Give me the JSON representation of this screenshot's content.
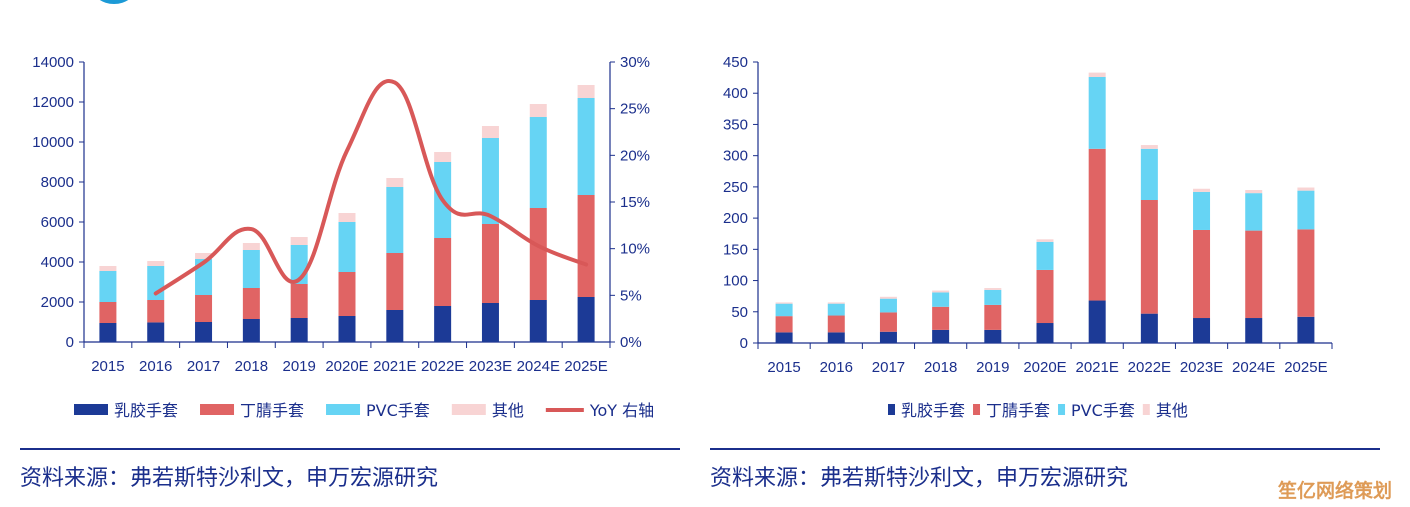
{
  "brand_colors": {
    "latex": "#1c3a96",
    "nitrile": "#e06464",
    "pvc": "#66d4f4",
    "other": "#f8d4d4",
    "yoy": "#d85858",
    "axis": "#1b2f8c"
  },
  "chart_data": [
    {
      "type": "bar",
      "stacked": true,
      "categories": [
        "2015",
        "2016",
        "2017",
        "2018",
        "2019",
        "2020E",
        "2021E",
        "2022E",
        "2023E",
        "2024E",
        "2025E"
      ],
      "series": [
        {
          "name": "乳胶手套",
          "values": [
            950,
            980,
            1000,
            1150,
            1200,
            1300,
            1600,
            1800,
            1950,
            2100,
            2250
          ]
        },
        {
          "name": "丁腈手套",
          "values": [
            1050,
            1120,
            1350,
            1550,
            1700,
            2200,
            2850,
            3400,
            3950,
            4600,
            5100
          ]
        },
        {
          "name": "PVC手套",
          "values": [
            1550,
            1700,
            1800,
            1900,
            1950,
            2500,
            3300,
            3800,
            4300,
            4550,
            4850
          ]
        },
        {
          "name": "其他",
          "values": [
            250,
            250,
            300,
            350,
            400,
            450,
            450,
            500,
            600,
            650,
            650
          ]
        }
      ],
      "line": {
        "name": "YoY 右轴",
        "x": [
          "2016",
          "2017",
          "2018",
          "2019",
          "2020E",
          "2021E",
          "2022E",
          "2023E",
          "2024E",
          "2025E"
        ],
        "values": [
          0.052,
          0.085,
          0.121,
          0.067,
          0.205,
          0.278,
          0.152,
          0.135,
          0.103,
          0.083
        ]
      },
      "ylim": [
        0,
        14000
      ],
      "y_ticks": [
        "0",
        "2000",
        "4000",
        "6000",
        "8000",
        "10000",
        "12000",
        "14000"
      ],
      "y2lim": [
        0,
        0.3
      ],
      "y2_ticks": [
        "0%",
        "5%",
        "10%",
        "15%",
        "20%",
        "25%",
        "30%"
      ],
      "legend": [
        "乳胶手套",
        "丁腈手套",
        "PVC手套",
        "其他",
        "YoY 右轴"
      ]
    },
    {
      "type": "bar",
      "stacked": true,
      "categories": [
        "2015",
        "2016",
        "2017",
        "2018",
        "2019",
        "2020E",
        "2021E",
        "2022E",
        "2023E",
        "2024E",
        "2025E"
      ],
      "series": [
        {
          "name": "乳胶手套",
          "values": [
            17,
            17,
            18,
            21,
            21,
            32,
            68,
            47,
            40,
            40,
            42
          ]
        },
        {
          "name": "丁腈手套",
          "values": [
            26,
            27,
            31,
            37,
            40,
            85,
            243,
            182,
            141,
            140,
            140
          ]
        },
        {
          "name": "PVC手套",
          "values": [
            20,
            19,
            22,
            23,
            24,
            45,
            115,
            82,
            61,
            60,
            62
          ]
        },
        {
          "name": "其他",
          "values": [
            2,
            2,
            3,
            3,
            3,
            4,
            7,
            6,
            5,
            5,
            5
          ]
        }
      ],
      "ylim": [
        0,
        450
      ],
      "y_ticks": [
        "0",
        "50",
        "100",
        "150",
        "200",
        "250",
        "300",
        "350",
        "400",
        "450"
      ],
      "legend": [
        "乳胶手套",
        "丁腈手套",
        "PVC手套",
        "其他"
      ]
    }
  ],
  "sources": [
    "资料来源：弗若斯特沙利文，申万宏源研究",
    "资料来源：弗若斯特沙利文，申万宏源研究"
  ],
  "watermark": "笙亿网络策划"
}
